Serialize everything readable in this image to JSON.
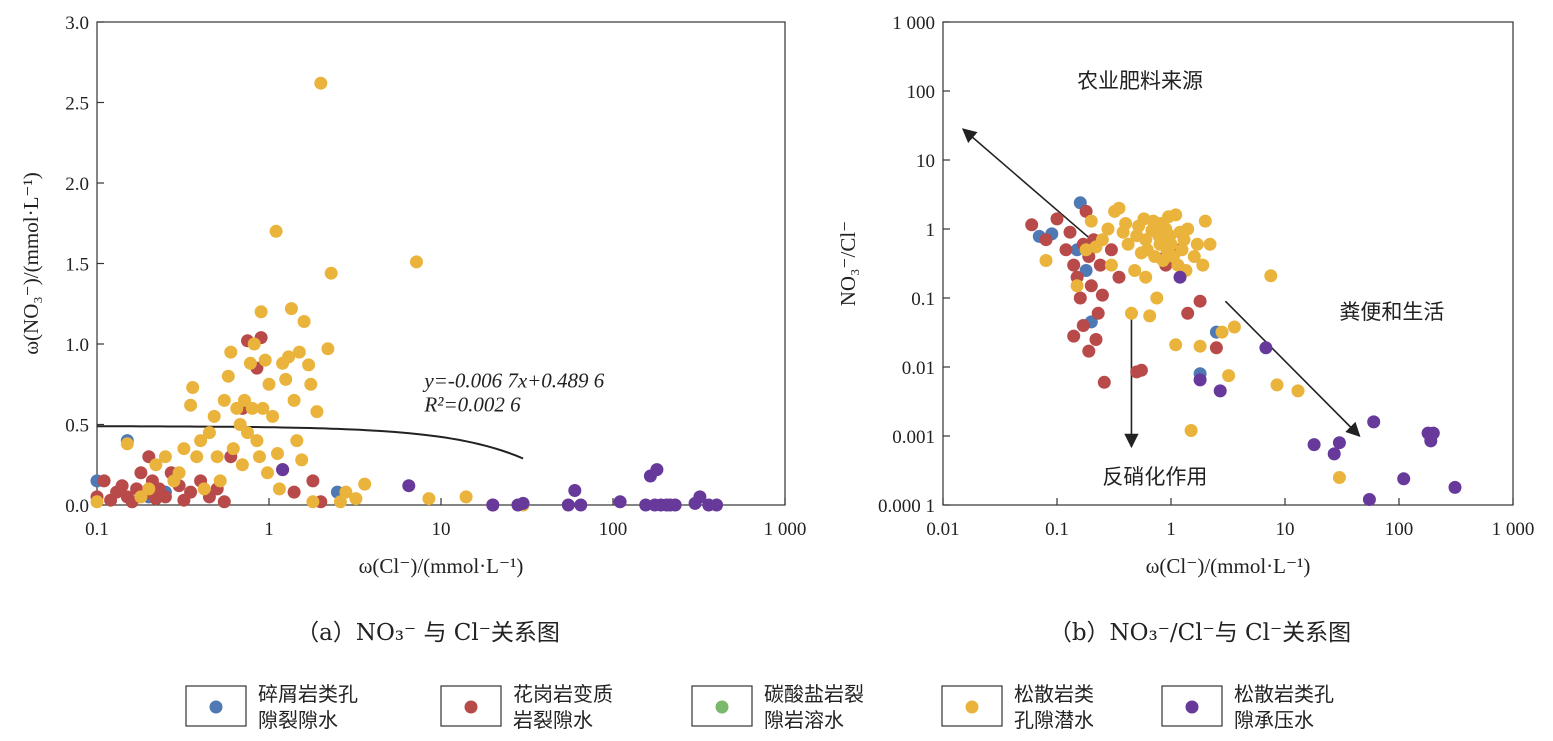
{
  "colors": {
    "debris": "#4e79b5",
    "granite": "#b84a4a",
    "carbonate": "#7ab86a",
    "unconfined": "#eab43c",
    "confined": "#66399a"
  },
  "legend": [
    {
      "key": "debris",
      "line1": "碎屑岩类孔",
      "line2": "隙裂隙水"
    },
    {
      "key": "granite",
      "line1": "花岗岩变质",
      "line2": "岩裂隙水"
    },
    {
      "key": "carbonate",
      "line1": "碳酸盐岩裂",
      "line2": "隙岩溶水"
    },
    {
      "key": "unconfined",
      "line1": "松散岩类",
      "line2": "孔隙潜水"
    },
    {
      "key": "confined",
      "line1": "松散岩类孔",
      "line2": "隙承压水"
    }
  ],
  "captions": {
    "a": "（a）NO₃⁻ 与 Cl⁻关系图",
    "b": "（b）NO₃⁻/Cl⁻与 Cl⁻关系图"
  },
  "chart_data": [
    {
      "id": "a",
      "type": "scatter",
      "xscale": "log",
      "xlim": [
        0.1,
        1000
      ],
      "ylim": [
        0,
        3.0
      ],
      "xticks": [
        0.1,
        1,
        10,
        100,
        1000
      ],
      "xtick_labels": [
        "0.1",
        "1",
        "10",
        "100",
        "1 000"
      ],
      "yticks": [
        0,
        0.5,
        1.0,
        1.5,
        2.0,
        2.5,
        3.0
      ],
      "ytick_labels": [
        "0.0",
        "0.5",
        "1.0",
        "1.5",
        "2.0",
        "2.5",
        "3.0"
      ],
      "xlabel": "ω(Cl⁻)/(mmol·L⁻¹)",
      "ylabel": "ω(NO₃⁻)/(mmol·L⁻¹)",
      "regression": {
        "slope": -0.0067,
        "intercept": 0.4896,
        "x_range": [
          0.1,
          30
        ],
        "eq": "y=-0.006 7x+0.489 6",
        "r2": "R²=0.002 6"
      },
      "series": [
        {
          "key": "debris",
          "points": [
            [
              0.1,
              0.15
            ],
            [
              0.15,
              0.4
            ],
            [
              0.2,
              0.05
            ],
            [
              0.25,
              0.08
            ],
            [
              2.5,
              0.08
            ]
          ]
        },
        {
          "key": "granite",
          "points": [
            [
              0.1,
              0.05
            ],
            [
              0.11,
              0.15
            ],
            [
              0.12,
              0.03
            ],
            [
              0.13,
              0.08
            ],
            [
              0.14,
              0.12
            ],
            [
              0.15,
              0.05
            ],
            [
              0.16,
              0.02
            ],
            [
              0.17,
              0.1
            ],
            [
              0.18,
              0.2
            ],
            [
              0.19,
              0.07
            ],
            [
              0.2,
              0.3
            ],
            [
              0.21,
              0.15
            ],
            [
              0.22,
              0.04
            ],
            [
              0.23,
              0.1
            ],
            [
              0.25,
              0.05
            ],
            [
              0.27,
              0.2
            ],
            [
              0.3,
              0.12
            ],
            [
              0.32,
              0.03
            ],
            [
              0.35,
              0.08
            ],
            [
              0.4,
              0.15
            ],
            [
              0.45,
              0.05
            ],
            [
              0.5,
              0.1
            ],
            [
              0.55,
              0.02
            ],
            [
              0.6,
              0.3
            ],
            [
              0.7,
              0.6
            ],
            [
              0.75,
              1.02
            ],
            [
              0.85,
              0.85
            ],
            [
              0.9,
              1.04
            ],
            [
              1.2,
              0.22
            ],
            [
              1.4,
              0.08
            ],
            [
              1.8,
              0.15
            ],
            [
              2.0,
              0.02
            ],
            [
              20,
              0.0
            ]
          ]
        },
        {
          "key": "unconfined",
          "points": [
            [
              0.1,
              0.02
            ],
            [
              0.15,
              0.38
            ],
            [
              0.18,
              0.05
            ],
            [
              0.2,
              0.1
            ],
            [
              0.22,
              0.25
            ],
            [
              0.25,
              0.3
            ],
            [
              0.28,
              0.15
            ],
            [
              0.3,
              0.2
            ],
            [
              0.32,
              0.35
            ],
            [
              0.35,
              0.62
            ],
            [
              0.36,
              0.73
            ],
            [
              0.38,
              0.3
            ],
            [
              0.4,
              0.4
            ],
            [
              0.42,
              0.1
            ],
            [
              0.45,
              0.45
            ],
            [
              0.48,
              0.55
            ],
            [
              0.5,
              0.3
            ],
            [
              0.52,
              0.15
            ],
            [
              0.55,
              0.65
            ],
            [
              0.58,
              0.8
            ],
            [
              0.6,
              0.95
            ],
            [
              0.62,
              0.35
            ],
            [
              0.65,
              0.6
            ],
            [
              0.68,
              0.5
            ],
            [
              0.7,
              0.25
            ],
            [
              0.72,
              0.65
            ],
            [
              0.75,
              0.45
            ],
            [
              0.78,
              0.88
            ],
            [
              0.8,
              0.6
            ],
            [
              0.82,
              1.0
            ],
            [
              0.85,
              0.4
            ],
            [
              0.88,
              0.3
            ],
            [
              0.9,
              1.2
            ],
            [
              0.92,
              0.6
            ],
            [
              0.95,
              0.9
            ],
            [
              0.98,
              0.2
            ],
            [
              1.0,
              0.75
            ],
            [
              1.05,
              0.55
            ],
            [
              1.1,
              1.7
            ],
            [
              1.12,
              0.32
            ],
            [
              1.15,
              0.1
            ],
            [
              1.2,
              0.88
            ],
            [
              1.25,
              0.78
            ],
            [
              1.3,
              0.92
            ],
            [
              1.35,
              1.22
            ],
            [
              1.4,
              0.65
            ],
            [
              1.45,
              0.4
            ],
            [
              1.5,
              0.95
            ],
            [
              1.55,
              0.28
            ],
            [
              1.6,
              1.14
            ],
            [
              1.7,
              0.87
            ],
            [
              1.75,
              0.75
            ],
            [
              1.8,
              0.02
            ],
            [
              1.9,
              0.58
            ],
            [
              2.0,
              2.62
            ],
            [
              2.2,
              0.97
            ],
            [
              2.3,
              1.44
            ],
            [
              2.6,
              0.02
            ],
            [
              2.8,
              0.08
            ],
            [
              3.2,
              0.04
            ],
            [
              3.6,
              0.13
            ],
            [
              7.2,
              1.51
            ],
            [
              8.5,
              0.04
            ],
            [
              14,
              0.05
            ],
            [
              30,
              0.0
            ]
          ]
        },
        {
          "key": "confined",
          "points": [
            [
              1.2,
              0.22
            ],
            [
              6.5,
              0.12
            ],
            [
              20,
              0.0
            ],
            [
              28,
              0.0
            ],
            [
              30,
              0.01
            ],
            [
              55,
              0.0
            ],
            [
              60,
              0.09
            ],
            [
              65,
              0.0
            ],
            [
              110,
              0.02
            ],
            [
              155,
              0.0
            ],
            [
              165,
              0.18
            ],
            [
              175,
              0.0
            ],
            [
              180,
              0.22
            ],
            [
              190,
              0.0
            ],
            [
              205,
              0.0
            ],
            [
              215,
              0.0
            ],
            [
              230,
              0.0
            ],
            [
              300,
              0.01
            ],
            [
              320,
              0.05
            ],
            [
              360,
              0.0
            ],
            [
              400,
              0.0
            ]
          ]
        }
      ]
    },
    {
      "id": "b",
      "type": "scatter",
      "xscale": "log",
      "yscale": "log",
      "xlim": [
        0.01,
        1000
      ],
      "ylim": [
        0.0001,
        1000
      ],
      "xticks": [
        0.01,
        0.1,
        1,
        10,
        100,
        1000
      ],
      "xtick_labels": [
        "0.01",
        "0.1",
        "1",
        "10",
        "100",
        "1 000"
      ],
      "yticks": [
        0.0001,
        0.001,
        0.01,
        0.1,
        1,
        10,
        100,
        1000
      ],
      "ytick_labels": [
        "0.000 1",
        "0.001",
        "0.01",
        "0.1",
        "1",
        "10",
        "100",
        "1 000"
      ],
      "xlabel": "ω(Cl⁻)/(mmol·L⁻¹)",
      "ylabel": "NO₃⁻/Cl⁻",
      "annotations": [
        {
          "text": "农业肥料来源",
          "x": 0.15,
          "y": 110
        },
        {
          "text": "粪便和生活",
          "x": 30,
          "y": 0.05
        },
        {
          "text": "反硝化作用",
          "x": 0.25,
          "y": 0.0002
        }
      ],
      "arrows": [
        {
          "from": [
            0.2,
            0.7
          ],
          "to": [
            0.015,
            28
          ]
        },
        {
          "from": [
            3,
            0.09
          ],
          "to": [
            45,
            0.001
          ]
        },
        {
          "from": [
            0.45,
            0.05
          ],
          "to": [
            0.45,
            0.0007
          ]
        }
      ],
      "series": [
        {
          "key": "debris",
          "points": [
            [
              0.07,
              0.78
            ],
            [
              0.09,
              0.85
            ],
            [
              0.15,
              0.5
            ],
            [
              0.18,
              0.25
            ],
            [
              0.2,
              0.045
            ],
            [
              0.16,
              2.4
            ],
            [
              1.8,
              0.008
            ],
            [
              2.5,
              0.032
            ]
          ]
        },
        {
          "key": "granite",
          "points": [
            [
              0.06,
              1.15
            ],
            [
              0.08,
              0.7
            ],
            [
              0.1,
              1.4
            ],
            [
              0.12,
              0.5
            ],
            [
              0.13,
              0.9
            ],
            [
              0.14,
              0.3
            ],
            [
              0.15,
              0.2
            ],
            [
              0.16,
              0.1
            ],
            [
              0.17,
              0.6
            ],
            [
              0.18,
              1.8
            ],
            [
              0.19,
              0.4
            ],
            [
              0.2,
              0.15
            ],
            [
              0.21,
              0.7
            ],
            [
              0.22,
              0.025
            ],
            [
              0.23,
              0.06
            ],
            [
              0.24,
              0.3
            ],
            [
              0.25,
              0.11
            ],
            [
              0.26,
              0.006
            ],
            [
              0.3,
              0.5
            ],
            [
              0.35,
              0.2
            ],
            [
              0.5,
              0.0085
            ],
            [
              0.55,
              0.009
            ],
            [
              0.9,
              0.3
            ],
            [
              1.2,
              0.5
            ],
            [
              1.4,
              0.06
            ],
            [
              1.8,
              0.09
            ],
            [
              2.5,
              0.019
            ],
            [
              0.14,
              0.028
            ],
            [
              0.19,
              0.017
            ],
            [
              0.17,
              0.04
            ],
            [
              0.9,
              0.4
            ]
          ]
        },
        {
          "key": "unconfined",
          "points": [
            [
              0.08,
              0.35
            ],
            [
              0.15,
              0.15
            ],
            [
              0.18,
              0.5
            ],
            [
              0.2,
              1.3
            ],
            [
              0.22,
              0.55
            ],
            [
              0.25,
              0.7
            ],
            [
              0.28,
              1.0
            ],
            [
              0.3,
              0.3
            ],
            [
              0.32,
              1.8
            ],
            [
              0.35,
              2.0
            ],
            [
              0.38,
              0.9
            ],
            [
              0.4,
              1.2
            ],
            [
              0.42,
              0.6
            ],
            [
              0.45,
              0.06
            ],
            [
              0.48,
              0.25
            ],
            [
              0.5,
              0.8
            ],
            [
              0.52,
              1.1
            ],
            [
              0.55,
              0.45
            ],
            [
              0.58,
              1.4
            ],
            [
              0.6,
              0.7
            ],
            [
              0.62,
              0.5
            ],
            [
              0.65,
              0.055
            ],
            [
              0.68,
              0.95
            ],
            [
              0.7,
              1.3
            ],
            [
              0.72,
              0.4
            ],
            [
              0.75,
              0.1
            ],
            [
              0.78,
              0.8
            ],
            [
              0.8,
              0.6
            ],
            [
              0.82,
              1.2
            ],
            [
              0.85,
              0.35
            ],
            [
              0.88,
              0.7
            ],
            [
              0.9,
              1.0
            ],
            [
              0.92,
              0.5
            ],
            [
              0.95,
              1.5
            ],
            [
              0.98,
              0.8
            ],
            [
              1.0,
              0.6
            ],
            [
              1.05,
              0.4
            ],
            [
              1.1,
              1.6
            ],
            [
              1.15,
              0.3
            ],
            [
              1.2,
              0.9
            ],
            [
              1.25,
              0.5
            ],
            [
              1.3,
              0.7
            ],
            [
              1.35,
              0.25
            ],
            [
              1.4,
              1.0
            ],
            [
              1.5,
              0.0012
            ],
            [
              1.6,
              0.4
            ],
            [
              1.7,
              0.6
            ],
            [
              1.8,
              0.02
            ],
            [
              1.9,
              0.3
            ],
            [
              2.0,
              1.3
            ],
            [
              2.2,
              0.6
            ],
            [
              2.8,
              0.032
            ],
            [
              3.2,
              0.0075
            ],
            [
              3.6,
              0.038
            ],
            [
              7.5,
              0.21
            ],
            [
              8.5,
              0.0055
            ],
            [
              13,
              0.0045
            ],
            [
              30,
              0.00025
            ],
            [
              0.6,
              0.2
            ],
            [
              1.1,
              0.021
            ]
          ]
        },
        {
          "key": "confined",
          "points": [
            [
              1.2,
              0.2
            ],
            [
              1.8,
              0.0065
            ],
            [
              2.7,
              0.0045
            ],
            [
              6.8,
              0.019
            ],
            [
              18,
              0.00075
            ],
            [
              27,
              0.00055
            ],
            [
              30,
              0.0008
            ],
            [
              55,
              0.00012
            ],
            [
              60,
              0.0016
            ],
            [
              110,
              0.00024
            ],
            [
              180,
              0.0011
            ],
            [
              190,
              0.00085
            ],
            [
              200,
              0.0011
            ],
            [
              310,
              0.00018
            ]
          ]
        }
      ]
    }
  ]
}
